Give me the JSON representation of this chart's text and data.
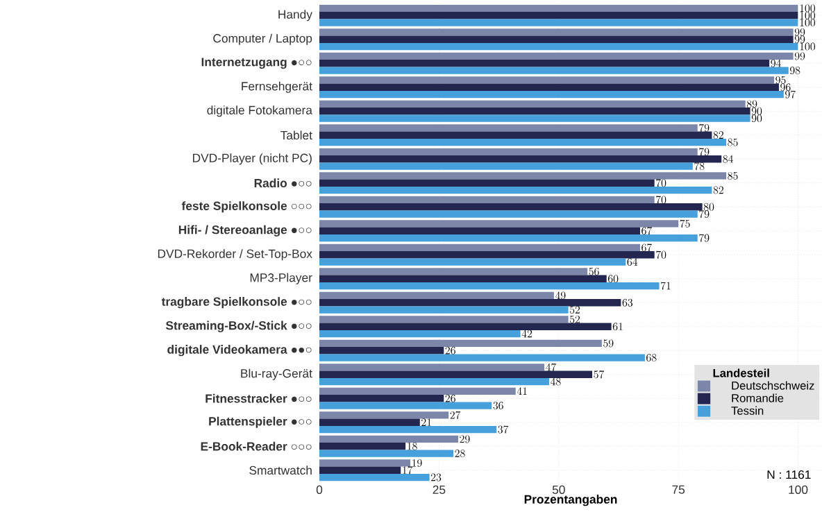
{
  "chart_data": {
    "type": "bar",
    "orientation": "horizontal",
    "xlabel": "Prozentangaben",
    "legend_title": "Landesteil",
    "categories": [
      "Handy",
      "Computer / Laptop",
      "**Internetzugang** ●○○",
      "Fernsehgerät",
      "digitale Fotokamera",
      "Tablet",
      "DVD-Player (nicht PC)",
      "**Radio** ●○○",
      "**feste Spielkonsole** ○○○",
      "**Hifi- / Stereoanlage** ●○○",
      "DVD-Rekorder / Set-Top-Box",
      "MP3-Player",
      "**tragbare Spielkonsole** ●○○",
      "**Streaming-Box/-Stick** ●○○",
      "**digitale Videokamera** ●●○",
      "Blu-ray-Gerät",
      "**Fitnesstracker** ●○○",
      "**Plattenspieler** ●○○",
      "**E-Book-Reader** ○○○",
      "Smartwatch"
    ],
    "series": [
      {
        "name": "Deutschschweiz",
        "color": "#7b86a8",
        "values": [
          100,
          99,
          99,
          95,
          89,
          79,
          79,
          85,
          70,
          75,
          67,
          56,
          49,
          52,
          59,
          47,
          41,
          27,
          29,
          19
        ]
      },
      {
        "name": "Romandie",
        "color": "#23264f",
        "values": [
          100,
          99,
          94,
          96,
          90,
          82,
          84,
          70,
          80,
          67,
          70,
          60,
          63,
          61,
          26,
          57,
          26,
          21,
          18,
          17
        ]
      },
      {
        "name": "Tessin",
        "color": "#45a0db",
        "values": [
          100,
          100,
          98,
          97,
          90,
          85,
          78,
          82,
          79,
          79,
          64,
          71,
          52,
          42,
          68,
          48,
          36,
          37,
          28,
          23
        ]
      }
    ],
    "xlim": [
      0,
      105
    ],
    "xticks": [
      0,
      25,
      50,
      75,
      100
    ],
    "data_labels": true,
    "grid": true,
    "legend": "bottom right",
    "annotations": [
      "N : 1161"
    ]
  }
}
